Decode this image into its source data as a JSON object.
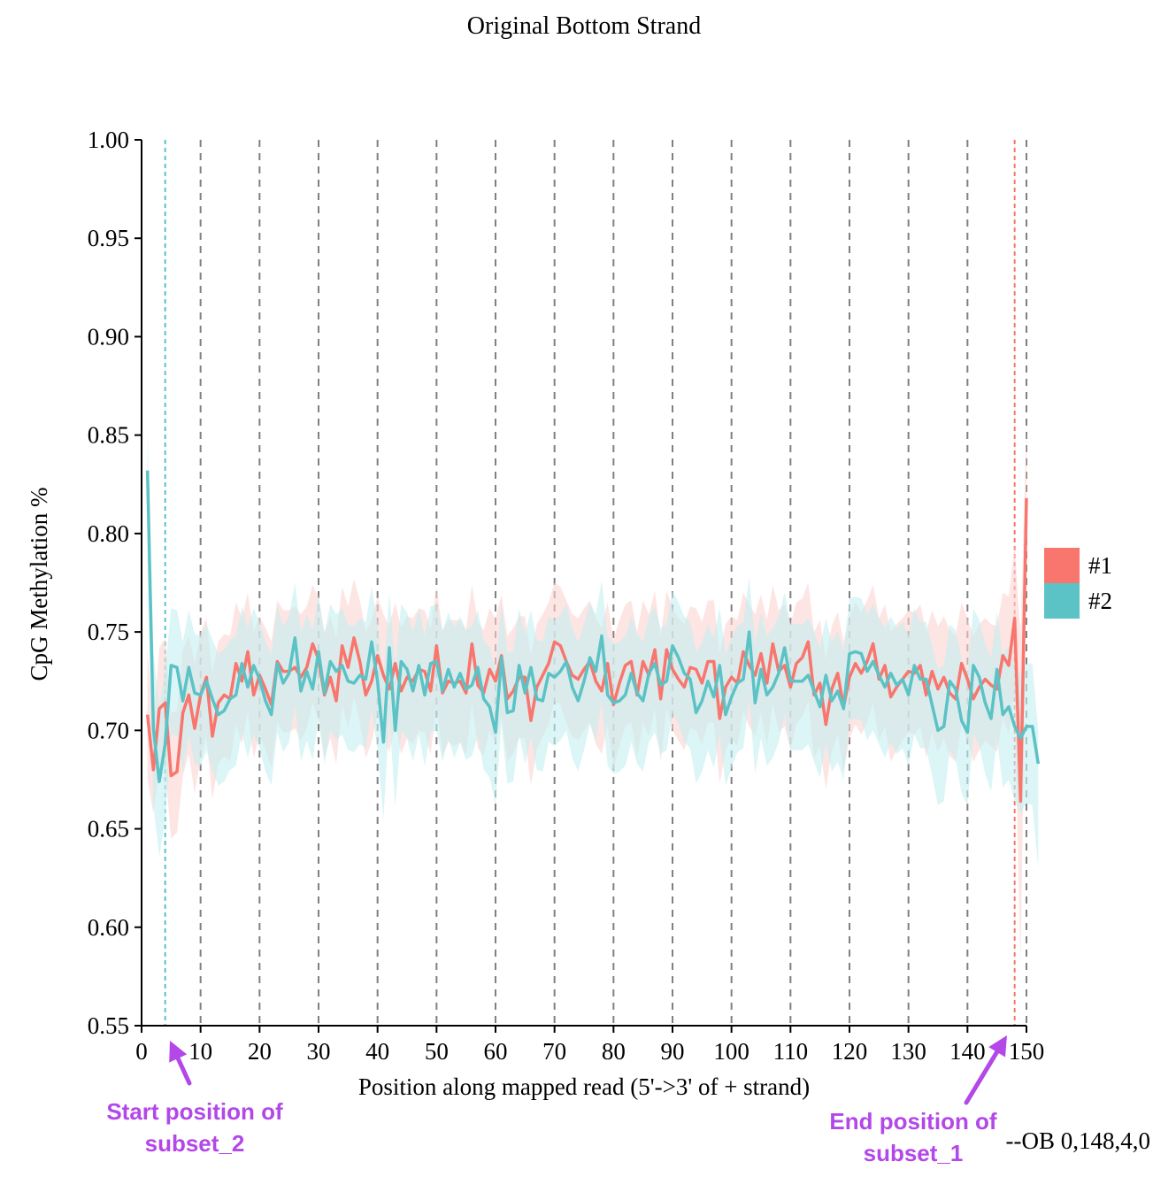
{
  "chart_data": {
    "type": "line",
    "title": "Original Bottom Strand",
    "xlabel": "Position along mapped read (5'->3' of + strand)",
    "ylabel": "CpG Methylation %",
    "xlim": [
      0,
      150
    ],
    "ylim": [
      0.55,
      1.0
    ],
    "xticks": [
      0,
      10,
      20,
      30,
      40,
      50,
      60,
      70,
      80,
      90,
      100,
      110,
      120,
      130,
      140,
      150
    ],
    "yticks": [
      0.55,
      0.6,
      0.65,
      0.7,
      0.75,
      0.8,
      0.85,
      0.9,
      0.95,
      1.0
    ],
    "grid": "vertical dashed lines at x tick positions",
    "legend_position": "right",
    "series": [
      {
        "name": "#1",
        "color": "#F8766D",
        "band_color": "#FBD3D0",
        "values": [
          0.708,
          0.68,
          0.711,
          0.714,
          0.677,
          0.679,
          0.709,
          0.718,
          0.701,
          0.718,
          0.727,
          0.697,
          0.714,
          0.718,
          0.716,
          0.734,
          0.725,
          0.74,
          0.718,
          0.728,
          0.721,
          0.713,
          0.735,
          0.73,
          0.73,
          0.732,
          0.727,
          0.732,
          0.744,
          0.736,
          0.718,
          0.727,
          0.715,
          0.743,
          0.732,
          0.747,
          0.735,
          0.718,
          0.725,
          0.738,
          0.728,
          0.721,
          0.734,
          0.72,
          0.727,
          0.725,
          0.731,
          0.73,
          0.72,
          0.743,
          0.719,
          0.725,
          0.724,
          0.725,
          0.719,
          0.744,
          0.723,
          0.719,
          0.731,
          0.725,
          0.738,
          0.716,
          0.72,
          0.727,
          0.727,
          0.705,
          0.722,
          0.728,
          0.734,
          0.745,
          0.743,
          0.735,
          0.728,
          0.726,
          0.731,
          0.735,
          0.725,
          0.72,
          0.734,
          0.713,
          0.724,
          0.733,
          0.735,
          0.718,
          0.735,
          0.728,
          0.741,
          0.716,
          0.741,
          0.731,
          0.726,
          0.722,
          0.732,
          0.731,
          0.724,
          0.735,
          0.735,
          0.706,
          0.722,
          0.727,
          0.724,
          0.74,
          0.733,
          0.728,
          0.739,
          0.724,
          0.744,
          0.73,
          0.733,
          0.722,
          0.734,
          0.737,
          0.745,
          0.718,
          0.724,
          0.703,
          0.721,
          0.729,
          0.712,
          0.727,
          0.734,
          0.729,
          0.735,
          0.744,
          0.726,
          0.733,
          0.717,
          0.722,
          0.726,
          0.73,
          0.729,
          0.733,
          0.718,
          0.73,
          0.721,
          0.727,
          0.719,
          0.716,
          0.734,
          0.726,
          0.716,
          0.722,
          0.726,
          0.723,
          0.721,
          0.738,
          0.733,
          0.757,
          0.664,
          0.818
        ],
        "lower": [
          0.675,
          0.658,
          0.68,
          0.681,
          0.645,
          0.648,
          0.677,
          0.688,
          0.668,
          0.686,
          0.697,
          0.665,
          0.683,
          0.687,
          0.684,
          0.703,
          0.693,
          0.71,
          0.686,
          0.698,
          0.69,
          0.681,
          0.704,
          0.699,
          0.699,
          0.701,
          0.695,
          0.701,
          0.714,
          0.705,
          0.686,
          0.696,
          0.683,
          0.713,
          0.701,
          0.717,
          0.704,
          0.686,
          0.694,
          0.708,
          0.697,
          0.689,
          0.703,
          0.688,
          0.696,
          0.693,
          0.7,
          0.699,
          0.688,
          0.713,
          0.687,
          0.694,
          0.692,
          0.694,
          0.687,
          0.714,
          0.691,
          0.687,
          0.7,
          0.693,
          0.707,
          0.684,
          0.688,
          0.696,
          0.696,
          0.672,
          0.69,
          0.697,
          0.703,
          0.715,
          0.713,
          0.704,
          0.697,
          0.695,
          0.7,
          0.704,
          0.693,
          0.688,
          0.703,
          0.68,
          0.692,
          0.702,
          0.704,
          0.686,
          0.704,
          0.697,
          0.711,
          0.684,
          0.711,
          0.7,
          0.695,
          0.69,
          0.701,
          0.7,
          0.693,
          0.704,
          0.704,
          0.673,
          0.69,
          0.696,
          0.692,
          0.71,
          0.702,
          0.697,
          0.709,
          0.692,
          0.714,
          0.699,
          0.702,
          0.69,
          0.703,
          0.707,
          0.715,
          0.686,
          0.692,
          0.67,
          0.689,
          0.698,
          0.679,
          0.696,
          0.703,
          0.698,
          0.704,
          0.714,
          0.695,
          0.702,
          0.684,
          0.69,
          0.695,
          0.699,
          0.698,
          0.702,
          0.686,
          0.699,
          0.689,
          0.696,
          0.687,
          0.684,
          0.703,
          0.695,
          0.684,
          0.69,
          0.695,
          0.692,
          0.689,
          0.706,
          0.698,
          0.72,
          0.58,
          0.78
        ],
        "upper": [
          0.741,
          0.702,
          0.742,
          0.747,
          0.709,
          0.71,
          0.741,
          0.748,
          0.734,
          0.75,
          0.757,
          0.729,
          0.745,
          0.749,
          0.748,
          0.765,
          0.757,
          0.77,
          0.75,
          0.758,
          0.752,
          0.745,
          0.766,
          0.761,
          0.761,
          0.763,
          0.759,
          0.763,
          0.774,
          0.767,
          0.75,
          0.758,
          0.747,
          0.773,
          0.763,
          0.777,
          0.766,
          0.75,
          0.756,
          0.768,
          0.759,
          0.753,
          0.765,
          0.752,
          0.758,
          0.757,
          0.762,
          0.761,
          0.752,
          0.773,
          0.751,
          0.756,
          0.756,
          0.756,
          0.751,
          0.774,
          0.755,
          0.751,
          0.762,
          0.757,
          0.769,
          0.748,
          0.752,
          0.758,
          0.758,
          0.738,
          0.754,
          0.759,
          0.765,
          0.775,
          0.773,
          0.766,
          0.759,
          0.757,
          0.762,
          0.766,
          0.757,
          0.752,
          0.765,
          0.746,
          0.756,
          0.764,
          0.766,
          0.75,
          0.766,
          0.759,
          0.771,
          0.748,
          0.771,
          0.762,
          0.757,
          0.754,
          0.763,
          0.762,
          0.755,
          0.766,
          0.766,
          0.739,
          0.754,
          0.758,
          0.756,
          0.77,
          0.764,
          0.759,
          0.769,
          0.756,
          0.774,
          0.761,
          0.764,
          0.754,
          0.765,
          0.767,
          0.775,
          0.75,
          0.756,
          0.736,
          0.753,
          0.76,
          0.745,
          0.758,
          0.765,
          0.76,
          0.766,
          0.774,
          0.757,
          0.764,
          0.75,
          0.754,
          0.757,
          0.761,
          0.76,
          0.764,
          0.75,
          0.761,
          0.753,
          0.758,
          0.751,
          0.748,
          0.765,
          0.757,
          0.748,
          0.754,
          0.757,
          0.754,
          0.753,
          0.77,
          0.768,
          0.794,
          0.748,
          0.856
        ]
      },
      {
        "name": "#2",
        "color": "#5BC2C6",
        "band_color": "#C4EEF0",
        "values": [
          0.832,
          0.701,
          0.674,
          0.693,
          0.733,
          0.732,
          0.715,
          0.732,
          0.719,
          0.718,
          0.725,
          0.716,
          0.708,
          0.71,
          0.716,
          0.718,
          0.734,
          0.722,
          0.733,
          0.726,
          0.715,
          0.708,
          0.734,
          0.724,
          0.729,
          0.747,
          0.72,
          0.73,
          0.721,
          0.74,
          0.719,
          0.735,
          0.73,
          0.733,
          0.725,
          0.724,
          0.728,
          0.726,
          0.745,
          0.725,
          0.694,
          0.742,
          0.7,
          0.735,
          0.731,
          0.72,
          0.733,
          0.718,
          0.734,
          0.735,
          0.72,
          0.731,
          0.722,
          0.729,
          0.721,
          0.723,
          0.732,
          0.716,
          0.712,
          0.699,
          0.737,
          0.709,
          0.71,
          0.733,
          0.719,
          0.732,
          0.716,
          0.715,
          0.729,
          0.727,
          0.73,
          0.735,
          0.722,
          0.715,
          0.725,
          0.737,
          0.73,
          0.748,
          0.718,
          0.714,
          0.715,
          0.718,
          0.729,
          0.719,
          0.715,
          0.729,
          0.734,
          0.723,
          0.725,
          0.743,
          0.737,
          0.729,
          0.726,
          0.709,
          0.715,
          0.725,
          0.717,
          0.733,
          0.708,
          0.717,
          0.724,
          0.726,
          0.75,
          0.714,
          0.731,
          0.718,
          0.722,
          0.729,
          0.742,
          0.725,
          0.725,
          0.725,
          0.728,
          0.72,
          0.712,
          0.728,
          0.715,
          0.72,
          0.711,
          0.739,
          0.74,
          0.739,
          0.73,
          0.735,
          0.728,
          0.722,
          0.729,
          0.723,
          0.726,
          0.718,
          0.733,
          0.726,
          0.726,
          0.713,
          0.7,
          0.702,
          0.725,
          0.721,
          0.705,
          0.699,
          0.733,
          0.727,
          0.714,
          0.706,
          0.731,
          0.708,
          0.712,
          0.702,
          0.696,
          0.702,
          0.702,
          0.683
        ],
        "lower": [
          0.78,
          0.662,
          0.636,
          0.655,
          0.698,
          0.697,
          0.679,
          0.697,
          0.683,
          0.682,
          0.69,
          0.68,
          0.672,
          0.674,
          0.68,
          0.682,
          0.699,
          0.686,
          0.698,
          0.691,
          0.679,
          0.672,
          0.699,
          0.689,
          0.694,
          0.713,
          0.684,
          0.695,
          0.685,
          0.706,
          0.683,
          0.7,
          0.695,
          0.698,
          0.69,
          0.689,
          0.693,
          0.691,
          0.711,
          0.69,
          0.655,
          0.708,
          0.661,
          0.7,
          0.696,
          0.684,
          0.698,
          0.682,
          0.699,
          0.7,
          0.684,
          0.696,
          0.686,
          0.694,
          0.685,
          0.687,
          0.697,
          0.68,
          0.676,
          0.662,
          0.703,
          0.673,
          0.674,
          0.698,
          0.683,
          0.697,
          0.68,
          0.679,
          0.694,
          0.692,
          0.695,
          0.7,
          0.686,
          0.679,
          0.69,
          0.703,
          0.695,
          0.714,
          0.682,
          0.678,
          0.679,
          0.682,
          0.694,
          0.683,
          0.679,
          0.694,
          0.699,
          0.688,
          0.69,
          0.709,
          0.703,
          0.694,
          0.691,
          0.673,
          0.679,
          0.69,
          0.681,
          0.698,
          0.672,
          0.681,
          0.689,
          0.691,
          0.716,
          0.678,
          0.696,
          0.682,
          0.686,
          0.694,
          0.708,
          0.69,
          0.69,
          0.69,
          0.693,
          0.684,
          0.676,
          0.693,
          0.679,
          0.684,
          0.675,
          0.705,
          0.706,
          0.705,
          0.695,
          0.7,
          0.693,
          0.686,
          0.694,
          0.688,
          0.691,
          0.682,
          0.698,
          0.691,
          0.691,
          0.677,
          0.662,
          0.664,
          0.69,
          0.685,
          0.668,
          0.662,
          0.698,
          0.692,
          0.678,
          0.669,
          0.696,
          0.671,
          0.675,
          0.664,
          0.658,
          0.663,
          0.662,
          0.63
        ],
        "upper": [
          0.853,
          0.74,
          0.712,
          0.731,
          0.762,
          0.761,
          0.745,
          0.761,
          0.749,
          0.748,
          0.754,
          0.746,
          0.739,
          0.741,
          0.746,
          0.748,
          0.763,
          0.752,
          0.762,
          0.755,
          0.745,
          0.739,
          0.763,
          0.753,
          0.758,
          0.775,
          0.75,
          0.759,
          0.751,
          0.769,
          0.749,
          0.764,
          0.759,
          0.762,
          0.754,
          0.753,
          0.757,
          0.755,
          0.773,
          0.754,
          0.726,
          0.77,
          0.732,
          0.764,
          0.76,
          0.75,
          0.762,
          0.748,
          0.763,
          0.764,
          0.75,
          0.76,
          0.752,
          0.758,
          0.751,
          0.753,
          0.761,
          0.746,
          0.742,
          0.73,
          0.765,
          0.74,
          0.74,
          0.762,
          0.749,
          0.761,
          0.746,
          0.745,
          0.758,
          0.756,
          0.759,
          0.764,
          0.752,
          0.745,
          0.754,
          0.765,
          0.759,
          0.776,
          0.748,
          0.744,
          0.745,
          0.748,
          0.758,
          0.749,
          0.745,
          0.758,
          0.763,
          0.752,
          0.754,
          0.771,
          0.765,
          0.758,
          0.755,
          0.74,
          0.745,
          0.754,
          0.747,
          0.762,
          0.739,
          0.747,
          0.753,
          0.755,
          0.778,
          0.744,
          0.76,
          0.748,
          0.752,
          0.758,
          0.77,
          0.754,
          0.754,
          0.754,
          0.757,
          0.75,
          0.742,
          0.757,
          0.745,
          0.75,
          0.741,
          0.767,
          0.768,
          0.767,
          0.759,
          0.764,
          0.757,
          0.752,
          0.758,
          0.752,
          0.755,
          0.748,
          0.762,
          0.755,
          0.755,
          0.743,
          0.731,
          0.733,
          0.754,
          0.751,
          0.736,
          0.73,
          0.762,
          0.756,
          0.744,
          0.737,
          0.76,
          0.739,
          0.743,
          0.733,
          0.728,
          0.734,
          0.734,
          0.7
        ]
      }
    ],
    "x_start": 1,
    "markers": [
      {
        "x": 4,
        "color": "#5BC2C6"
      },
      {
        "x": 148,
        "color": "#F8766D"
      }
    ],
    "annotations": [
      {
        "text_lines": [
          "Start position of",
          "subset_2"
        ],
        "color": "#B347E8"
      },
      {
        "text_lines": [
          "End position of",
          "subset_1"
        ],
        "color": "#B347E8"
      }
    ],
    "footer_text": "--OB 0,148,4,0"
  }
}
